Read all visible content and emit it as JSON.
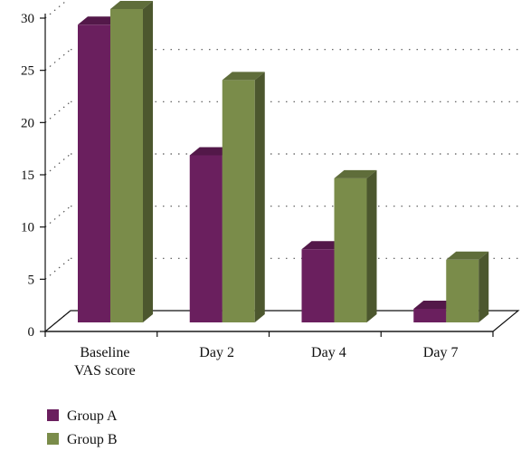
{
  "chart_data": {
    "type": "bar",
    "title": "",
    "xlabel": "",
    "ylabel": "",
    "categories": [
      [
        "Baseline",
        "VAS score"
      ],
      [
        "Day 2"
      ],
      [
        "Day 4"
      ],
      [
        "Day 7"
      ]
    ],
    "series": [
      {
        "name": "Group A",
        "color": "#6a1f5e",
        "values": [
          28.5,
          16,
          7,
          1.3
        ]
      },
      {
        "name": "Group B",
        "color": "#7a8c4a",
        "values": [
          30,
          23.2,
          13.8,
          6
        ]
      }
    ],
    "ylim": [
      0,
      30
    ],
    "yticks": [
      0,
      5,
      10,
      15,
      20,
      25,
      30
    ],
    "grid": true,
    "legend_position": "bottom-left",
    "three_d": true
  }
}
